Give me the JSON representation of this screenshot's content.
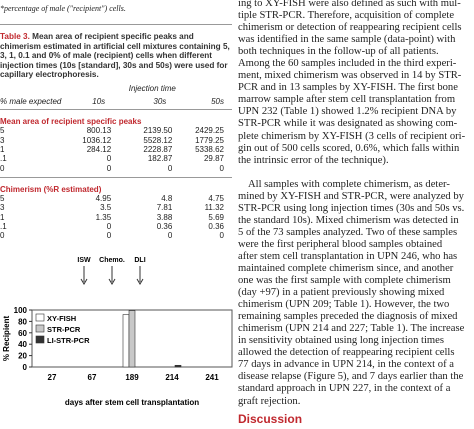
{
  "footnote": "*percentage of male (\"recipient\") cells.",
  "table": {
    "caption_label": "Table 3.",
    "caption": "Mean area of recipient specific peaks and chimerism estimated in artificial cell mixtures containing 5, 3, 1, 0.1 and 0% of male (recipient) cells when different injection times (10s [standard], 30s and 50s) were used for capillary electrophoresis.",
    "header": {
      "first": "% male expected",
      "group": "Injection time",
      "cols": [
        "10s",
        "30s",
        "50s"
      ]
    },
    "sections": [
      {
        "title": "Mean area of recipient specific peaks",
        "rows": [
          [
            "5",
            "800.13",
            "2139.50",
            "2429.25"
          ],
          [
            "3",
            "1036.12",
            "5528.12",
            "1779.25"
          ],
          [
            "1",
            "284.12",
            "2228.87",
            "5338.62"
          ],
          [
            ".1",
            "0",
            "182.87",
            "29.87"
          ],
          [
            "0",
            "0",
            "0",
            "0"
          ]
        ]
      },
      {
        "title": "Chimerism (%R estimated)",
        "rows": [
          [
            "5",
            "4.95",
            "4.8",
            "4.75"
          ],
          [
            "3",
            "3.5",
            "7.81",
            "11.32"
          ],
          [
            "1",
            "1.35",
            "3.88",
            "5.69"
          ],
          [
            ".1",
            "0",
            "0.36",
            "0.36"
          ],
          [
            "0",
            "0",
            "0",
            "0"
          ]
        ]
      }
    ]
  },
  "chart_data": {
    "type": "bar",
    "categories": [
      "27",
      "67",
      "189",
      "214",
      "241"
    ],
    "x_label": "days after stem cell transplantation",
    "y_label": "% Recipient",
    "ylim": [
      0,
      100
    ],
    "yticks": [
      0,
      20,
      40,
      60,
      80,
      100
    ],
    "annotations": [
      "ISW",
      "Chemo.",
      "DLI"
    ],
    "series": [
      {
        "name": "XY-FISH",
        "color": "#ffffff",
        "values": [
          0,
          0,
          92,
          0,
          0
        ]
      },
      {
        "name": "STR-PCR",
        "color": "#c8c8c8",
        "values": [
          0,
          0,
          99,
          0,
          0
        ]
      },
      {
        "name": "LI-STR-PCR",
        "color": "#333333",
        "values": [
          0,
          0,
          0,
          3,
          0
        ]
      }
    ]
  },
  "body": {
    "lines": [
      "ing to XY-FISH were also defined as such with mul-",
      "tiple STR-PCR. Therefore, acquisition of complete",
      "chimerism or detection of reappearing recipient cells",
      "was identified in the same sample (data-point) with",
      "both techniques in the follow-up of all patients.",
      "Among the 60 samples included in the third experi-",
      "ment, mixed chimerism was observed in 14 by STR-",
      "PCR and in 13 samples by XY-FISH. The first bone",
      "marrow sample after stem cell transplantation from",
      "UPN 232 (Table 1) showed 1.2% recipient DNA by",
      "STR-PCR while it was designated as showing com-",
      "plete chimerism by XY-FISH (3 cells of recipient ori-",
      "gin out of 500 cells scored, 0.6%, which falls within",
      "the intrinsic error of the technique).",
      "All samples with complete chimerism, as deter-",
      "mined by XY-FISH and STR-PCR, were analyzed by",
      "STR-PCR using long injection times (30s and 50s vs.",
      "the standard 10s). Mixed chimerism was detected in",
      "5 of the 73 samples analyzed. Two of these samples",
      "were the first peripheral blood samples obtained",
      "after stem cell transplantation in UPN 246, who has",
      "maintained complete chimerism since, and another",
      "one was the first sample with complete chimerism",
      "(day +97) in a patient previously showing mixed",
      "chimerism (UPN 209; Table 1). However, the two",
      "remaining samples preceded the diagnosis of mixed",
      "chimerism (UPN 214 and 227; Table 1). The increase",
      "in sensitivity obtained using long injection times",
      "allowed the detection of reappearing recipient cells",
      "77 days in advance in UPN 214, in the context of a",
      "disease relapse (Figure 5), and 7 days earlier than the",
      "standard approach in UPN 227, in the context of a",
      "graft rejection."
    ],
    "heading": "Discussion"
  }
}
